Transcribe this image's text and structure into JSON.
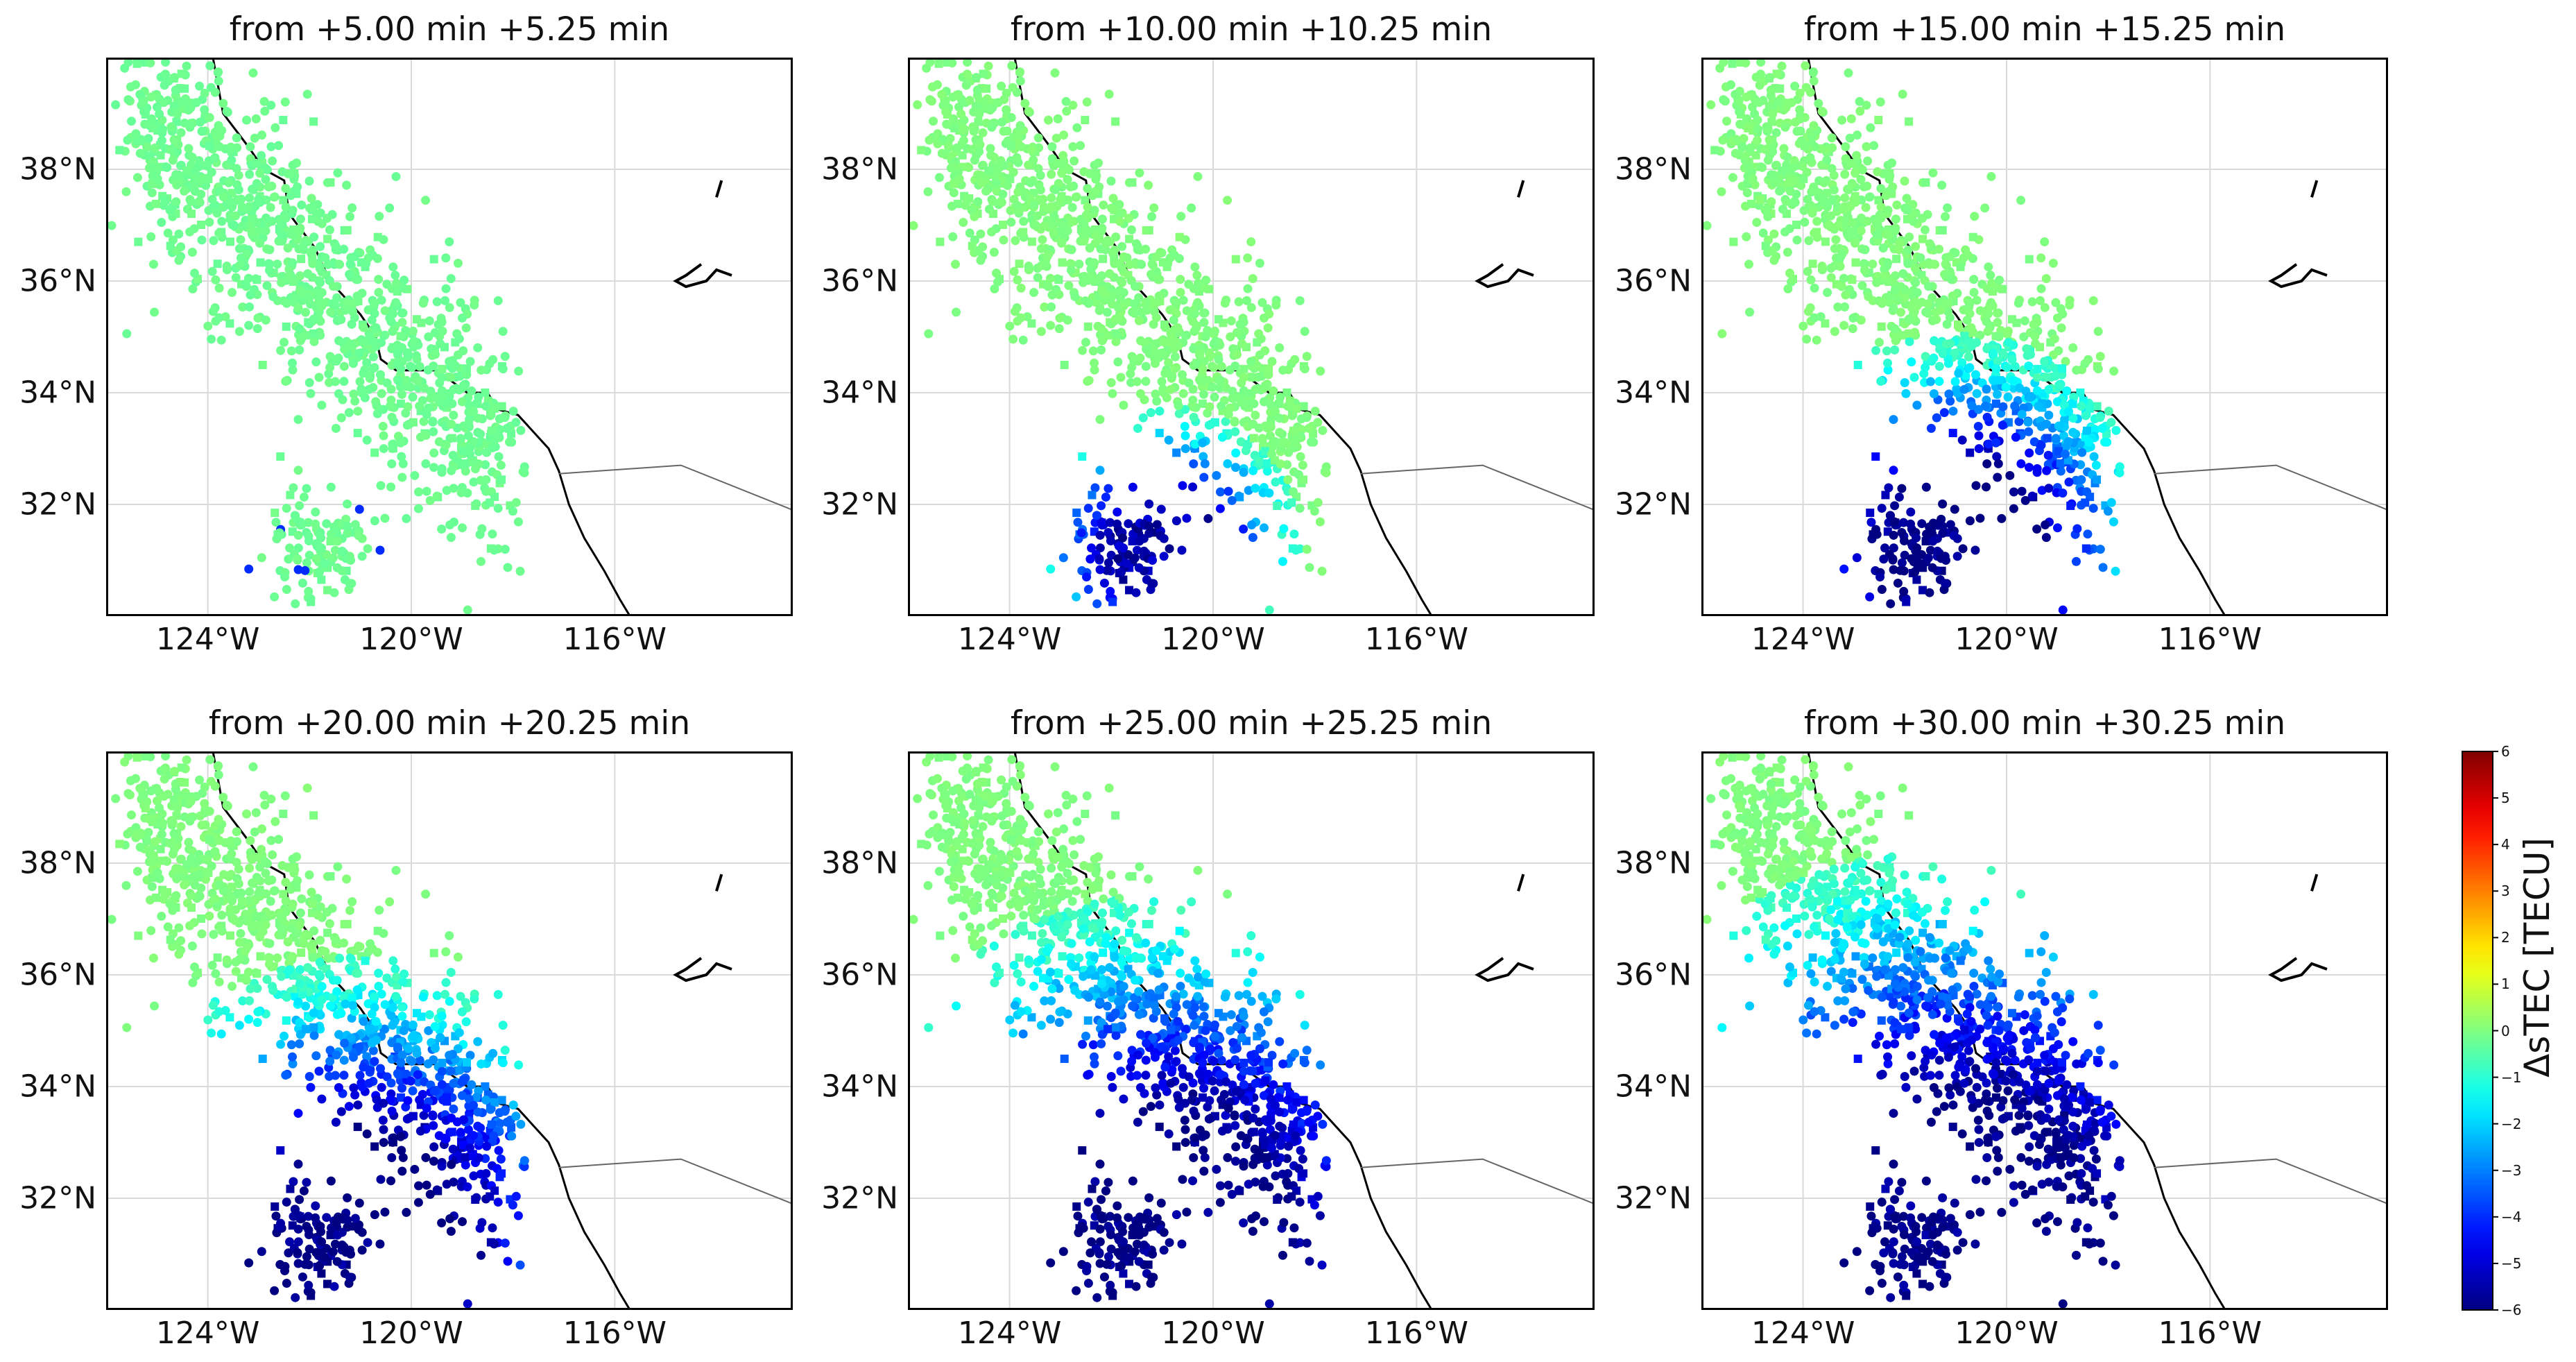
{
  "chart_data": [
    {
      "type": "scatter",
      "title": "from +5.00 min +5.25 min",
      "stage": 0
    },
    {
      "type": "scatter",
      "title": "from +10.00 min +10.25 min",
      "stage": 1
    },
    {
      "type": "scatter",
      "title": "from +15.00 min +15.25 min",
      "stage": 2
    },
    {
      "type": "scatter",
      "title": "from +20.00 min +20.25 min",
      "stage": 3
    },
    {
      "type": "scatter",
      "title": "from +25.00 min +25.25 min",
      "stage": 4
    },
    {
      "type": "scatter",
      "title": "from +30.00 min +30.25 min",
      "stage": 5
    }
  ],
  "axes": {
    "xlim": [
      -126,
      -112.5
    ],
    "ylim": [
      30,
      40
    ],
    "xticks": [
      -124,
      -120,
      -116
    ],
    "xtick_labels": [
      "124°W",
      "120°W",
      "116°W"
    ],
    "yticks": [
      38,
      36,
      34,
      32
    ],
    "ytick_labels": [
      "38°N",
      "36°N",
      "34°N",
      "32°N"
    ],
    "grid": true
  },
  "colorbar": {
    "label": "ΔsTEC [TECU]",
    "min": -6,
    "max": 6,
    "ticks": [
      "6",
      "5",
      "4",
      "3",
      "2",
      "1",
      "0",
      "−1",
      "−2",
      "−3",
      "−4",
      "−5",
      "−6"
    ],
    "colormap": "jet"
  },
  "colors": {
    "coast": "#000000",
    "grid": "#d9d9d9",
    "border": "#666666"
  }
}
